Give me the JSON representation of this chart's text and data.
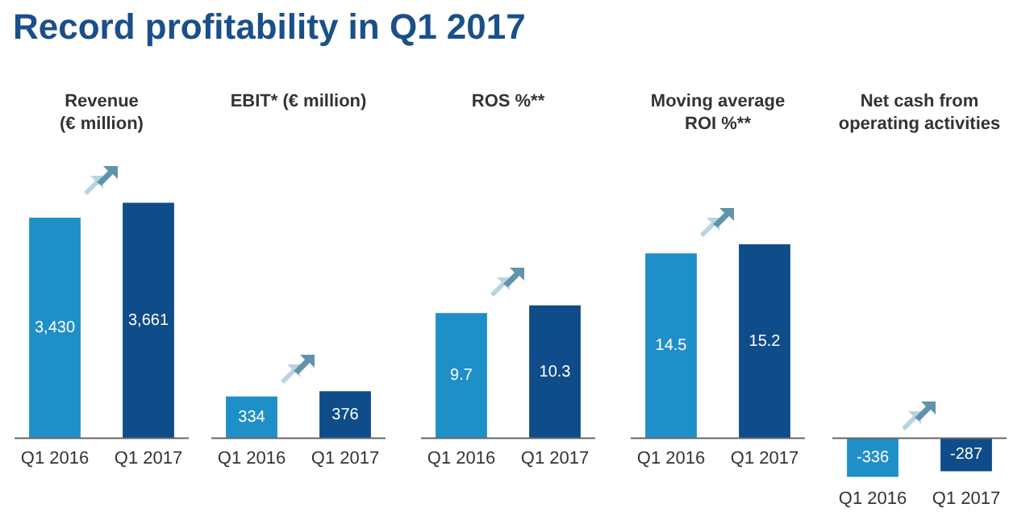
{
  "chart_data": [
    {
      "type": "other",
      "title": "Record profitability in Q1 2017"
    },
    {
      "type": "bar",
      "title": "Revenue\n(€ million)",
      "categories": [
        "Q1 2016",
        "Q1 2017"
      ],
      "values": [
        3430,
        3661
      ],
      "colors": [
        "#1f8fc7",
        "#0f4c8a"
      ],
      "value_labels": [
        "3,430",
        "3,661"
      ],
      "tick_labels": "x",
      "grid": false,
      "legend": false
    },
    {
      "type": "bar",
      "title": "EBIT* (€ million)",
      "categories": [
        "Q1 2016",
        "Q1 2017"
      ],
      "values": [
        334,
        376
      ],
      "colors": [
        "#1f8fc7",
        "#0f4c8a"
      ],
      "value_labels": [
        "334",
        "376"
      ],
      "tick_labels": "x",
      "grid": false,
      "legend": false
    },
    {
      "type": "bar",
      "title": "ROS %**",
      "categories": [
        "Q1 2016",
        "Q1 2017"
      ],
      "values": [
        9.7,
        10.3
      ],
      "colors": [
        "#1f8fc7",
        "#0f4c8a"
      ],
      "value_labels": [
        "9.7",
        "10.3"
      ],
      "tick_labels": "x",
      "grid": false,
      "legend": false
    },
    {
      "type": "bar",
      "title": "Moving average\nROI %**",
      "categories": [
        "Q1 2016",
        "Q1 2017"
      ],
      "values": [
        14.5,
        15.2
      ],
      "colors": [
        "#1f8fc7",
        "#0f4c8a"
      ],
      "value_labels": [
        "14.5",
        "15.2"
      ],
      "tick_labels": "x",
      "grid": false,
      "legend": false
    },
    {
      "type": "bar",
      "title": "Net cash from\noperating activities",
      "categories": [
        "Q1 2016",
        "Q1 2017"
      ],
      "values": [
        -336,
        -287
      ],
      "colors": [
        "#1f8fc7",
        "#0f4c8a"
      ],
      "value_labels": [
        "-336",
        "-287"
      ],
      "tick_labels": "x",
      "grid": false,
      "legend": false
    }
  ]
}
